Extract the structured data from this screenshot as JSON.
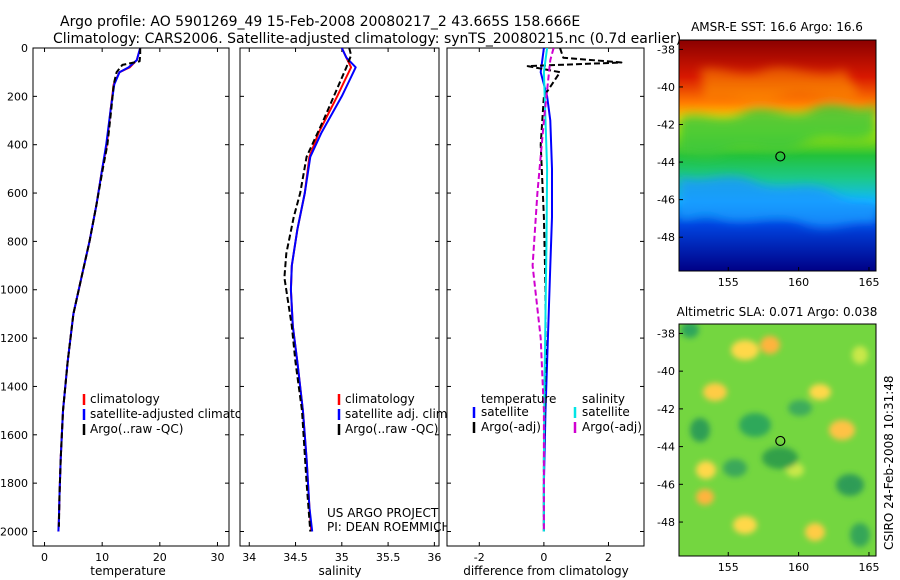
{
  "header": {
    "line1": "Argo profile: AO 5901269_49 15-Feb-2008 20080217_2 43.665S 158.666E",
    "line2": "Climatology: CARS2006. Satellite-adjusted climatology: synTS_20080215.nc (0.7d earlier)"
  },
  "side_note": "CSIRO 24-Feb-2008 10:31:48",
  "project_note": [
    "US ARGO PROJECT",
    "PI: DEAN ROEMMICH"
  ],
  "colors": {
    "climatology": "#ff0000",
    "satellite": "#0000ff",
    "argo": "#000000",
    "sal_satellite": "#00e5e5",
    "sal_argo": "#d000d0"
  },
  "chart_data": [
    {
      "type": "line",
      "panel": "temperature",
      "title": "",
      "xlabel": "temperature",
      "ylabel": "",
      "xlim": [
        -2,
        32
      ],
      "ylim": [
        2060,
        0
      ],
      "xticks": [
        0,
        10,
        20,
        30
      ],
      "yticks": [
        0,
        200,
        400,
        600,
        800,
        1000,
        1200,
        1400,
        1600,
        1800,
        2000
      ],
      "legend": {
        "position": "lower-right",
        "entries": [
          "climatology",
          "satellite-adjusted climatology",
          "Argo(..raw -QC)"
        ]
      },
      "series": [
        {
          "name": "climatology",
          "color": "#ff0000",
          "x": [
            16.6,
            16.0,
            14.8,
            13.0,
            12.0,
            11.5,
            10.8,
            10.0,
            9.0,
            7.8,
            6.4,
            5.0,
            4.0,
            3.2,
            2.8,
            2.6,
            2.5,
            2.4
          ],
          "y": [
            0,
            50,
            80,
            100,
            150,
            250,
            400,
            500,
            650,
            800,
            950,
            1100,
            1300,
            1500,
            1700,
            1850,
            1950,
            2000
          ]
        },
        {
          "name": "satellite-adjusted climatology",
          "color": "#0000ff",
          "x": [
            16.6,
            16.0,
            14.6,
            13.0,
            12.1,
            11.5,
            10.7,
            10.0,
            9.0,
            7.8,
            6.4,
            5.0,
            4.0,
            3.2,
            2.8,
            2.6,
            2.5,
            2.4
          ],
          "y": [
            0,
            50,
            80,
            100,
            150,
            250,
            400,
            500,
            650,
            800,
            950,
            1100,
            1300,
            1500,
            1700,
            1850,
            1950,
            2000
          ]
        },
        {
          "name": "Argo(..raw -QC)",
          "color": "#000000",
          "x": [
            16.6,
            16.6,
            16.5,
            13.5,
            12.5,
            12.0,
            11.6,
            10.9,
            10.1,
            9.0,
            7.8,
            6.4,
            5.0,
            4.0,
            3.2,
            2.8,
            2.6,
            2.5
          ],
          "y": [
            0,
            30,
            55,
            70,
            100,
            150,
            250,
            400,
            500,
            650,
            800,
            950,
            1100,
            1300,
            1500,
            1700,
            1850,
            1980
          ]
        }
      ]
    },
    {
      "type": "line",
      "panel": "salinity",
      "title": "",
      "xlabel": "salinity",
      "ylabel": "",
      "xlim": [
        33.9,
        36.05
      ],
      "ylim": [
        2060,
        0
      ],
      "xticks": [
        34,
        34.5,
        35,
        35.5,
        36
      ],
      "legend": {
        "position": "lower-right",
        "entries": [
          "climatology",
          "satellite adj. clim.",
          "Argo(..raw -QC)"
        ]
      },
      "series": [
        {
          "name": "climatology",
          "color": "#ff0000",
          "x": [
            35.0,
            35.05,
            35.1,
            35.05,
            34.95,
            34.75,
            34.65,
            34.6,
            34.52,
            34.46,
            34.45,
            34.47,
            34.52,
            34.58,
            34.62,
            34.65,
            34.67
          ],
          "y": [
            0,
            40,
            80,
            120,
            200,
            350,
            450,
            600,
            750,
            900,
            1000,
            1150,
            1300,
            1500,
            1700,
            1900,
            2000
          ]
        },
        {
          "name": "satellite adj. clim.",
          "color": "#0000ff",
          "x": [
            35.0,
            35.05,
            35.15,
            35.1,
            35.0,
            34.78,
            34.66,
            34.6,
            34.52,
            34.46,
            34.45,
            34.47,
            34.52,
            34.58,
            34.62,
            34.65,
            34.68
          ],
          "y": [
            0,
            40,
            80,
            120,
            200,
            350,
            450,
            600,
            750,
            900,
            1000,
            1150,
            1300,
            1500,
            1700,
            1900,
            2000
          ]
        },
        {
          "name": "Argo(..raw -QC)",
          "color": "#000000",
          "x": [
            35.08,
            35.1,
            35.05,
            34.8,
            34.62,
            34.55,
            34.48,
            34.4,
            34.38,
            34.42,
            34.46,
            34.5,
            34.57,
            34.62,
            34.66
          ],
          "y": [
            0,
            30,
            80,
            300,
            450,
            600,
            700,
            850,
            950,
            1050,
            1150,
            1300,
            1500,
            1800,
            2000
          ]
        }
      ]
    },
    {
      "type": "line",
      "panel": "difference",
      "title": "",
      "xlabel": "difference from climatology",
      "ylabel": "",
      "xlim": [
        -3,
        3.1
      ],
      "ylim": [
        2060,
        0
      ],
      "xticks": [
        -2,
        0,
        2
      ],
      "legend": {
        "position": "lower-right",
        "groups": [
          {
            "heading": "temperature",
            "entries": [
              "satellite",
              "Argo(-adj)"
            ]
          },
          {
            "heading": "salinity",
            "entries": [
              "satellite",
              "Argo(-adj)"
            ]
          }
        ]
      },
      "series": [
        {
          "name": "temperature satellite",
          "color": "#0000ff",
          "x": [
            0.0,
            -0.1,
            0.1,
            0.2,
            0.25,
            0.25,
            0.2,
            0.15,
            0.1,
            0.05,
            0.0,
            0.0
          ],
          "y": [
            0,
            100,
            200,
            300,
            500,
            700,
            900,
            1100,
            1300,
            1500,
            1800,
            2000
          ]
        },
        {
          "name": "temperature Argo(-adj)",
          "color": "#000000",
          "x": [
            0.5,
            0.6,
            2.4,
            -0.5,
            0.5,
            0.0,
            -0.1,
            0.0,
            0.05,
            0.05,
            0.0,
            0.0
          ],
          "y": [
            0,
            40,
            60,
            75,
            100,
            200,
            400,
            700,
            1000,
            1300,
            1700,
            2000
          ]
        },
        {
          "name": "salinity satellite",
          "color": "#00e5e5",
          "x": [
            0.1,
            0.0,
            0.05,
            0.1,
            0.08,
            0.05,
            0.02,
            0.0,
            0.0
          ],
          "y": [
            0,
            100,
            300,
            500,
            800,
            1100,
            1400,
            1700,
            2000
          ]
        },
        {
          "name": "salinity Argo(-adj)",
          "color": "#d000d0",
          "x": [
            0.3,
            0.2,
            0.0,
            -0.2,
            -0.35,
            -0.1,
            0.0,
            0.0
          ],
          "y": [
            0,
            50,
            300,
            600,
            900,
            1200,
            1500,
            2000
          ]
        }
      ]
    },
    {
      "type": "heatmap",
      "panel": "sst_map",
      "title": "AMSR-E SST: 16.6 Argo: 16.6",
      "xlim": [
        151.5,
        165.5
      ],
      "ylim": [
        -49.8,
        -37.5
      ],
      "xticks": [
        155,
        160,
        165
      ],
      "yticks": [
        -38,
        -40,
        -42,
        -44,
        -46,
        -48
      ],
      "marker": {
        "lon": 158.7,
        "lat": -43.7
      }
    },
    {
      "type": "heatmap",
      "panel": "sla_map",
      "title": "Altimetric SLA: 0.071 Argo: 0.038",
      "xlim": [
        151.5,
        165.5
      ],
      "ylim": [
        -49.8,
        -37.5
      ],
      "xticks": [
        155,
        160,
        165
      ],
      "yticks": [
        -38,
        -40,
        -42,
        -44,
        -46,
        -48
      ],
      "marker": {
        "lon": 158.7,
        "lat": -43.7
      }
    }
  ]
}
